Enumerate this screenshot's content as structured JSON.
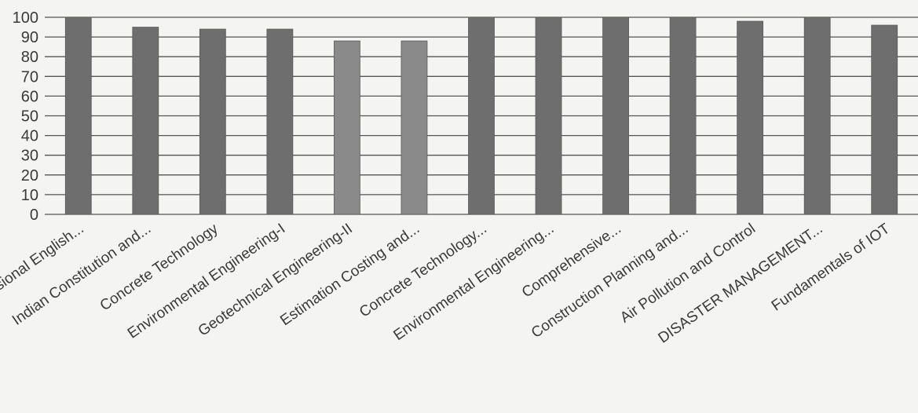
{
  "chart_data": {
    "type": "bar",
    "categories": [
      "Professional English...",
      "Indian Constitution and...",
      "Concrete Technology",
      "Environmental Engineering-I",
      "Geotechnical Engineering-II",
      "Estimation Costing and...",
      "Concrete Technology...",
      "Environmental Engineering...",
      "Comprehensive...",
      "Construction Planning and...",
      "Air Pollution and Control",
      "DISASTER MANAGEMENT...",
      "Fundamentals of IOT"
    ],
    "values": [
      100,
      95,
      94,
      94,
      88,
      88,
      100,
      100,
      100,
      100,
      98,
      100,
      96
    ],
    "ylim": [
      0,
      100
    ],
    "yticks": [
      0,
      10,
      20,
      30,
      40,
      50,
      60,
      70,
      80,
      90,
      100
    ],
    "grid": true,
    "legend": "none",
    "colors": {
      "bar": "#6e6e6e",
      "bar_light": "#8a8a8a",
      "grid": "#555555",
      "text": "#3a3a3a",
      "background": "#f4f4f2"
    }
  }
}
